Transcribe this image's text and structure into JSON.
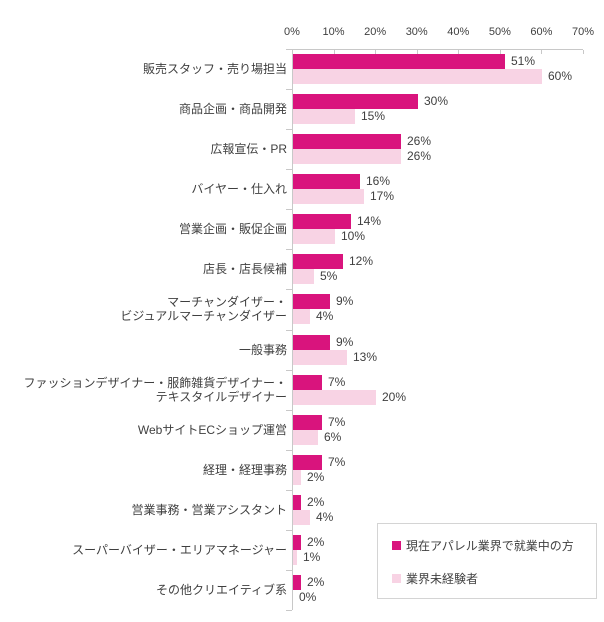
{
  "chart_data": {
    "type": "bar",
    "orientation": "horizontal",
    "title": "",
    "categories": [
      "販売スタッフ・売り場担当",
      "商品企画・商品開発",
      "広報宣伝・PR",
      "バイヤー・仕入れ",
      "営業企画・販促企画",
      "店長・店長候補",
      "マーチャンダイザー・\nビジュアルマーチャンダイザー",
      "一般事務",
      "ファッションデザイナー・服飾雑貨デザイナー・\nテキスタイルデザイナー",
      "WebサイトECショップ運営",
      "経理・経理事務",
      "営業事務・営業アシスタント",
      "スーパーバイザー・エリアマネージャー",
      "その他クリエイティブ系"
    ],
    "series": [
      {
        "name": "現在アパレル業界で就業中の方",
        "color": "#d9147d",
        "values": [
          51,
          30,
          26,
          16,
          14,
          12,
          9,
          9,
          7,
          7,
          7,
          2,
          2,
          2
        ]
      },
      {
        "name": "業界未経験者",
        "color": "#f8d3e4",
        "values": [
          60,
          15,
          26,
          17,
          10,
          5,
          4,
          13,
          20,
          6,
          2,
          4,
          1,
          0
        ]
      }
    ],
    "x_axis": {
      "ticks": [
        "0%",
        "10%",
        "20%",
        "30%",
        "40%",
        "50%",
        "60%",
        "70%"
      ],
      "min": 0,
      "max": 70,
      "position": "top"
    },
    "value_suffix": "%",
    "grid": false,
    "legend_position": "bottom-right"
  },
  "colors": {
    "axis_line": "#c8c8c8",
    "text": "#3f3f3f",
    "background": "#ffffff",
    "legend_border": "#d4d4d4"
  }
}
